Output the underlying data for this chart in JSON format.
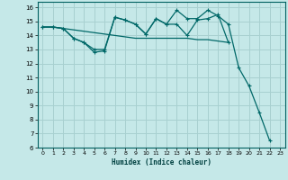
{
  "xlabel": "Humidex (Indice chaleur)",
  "bg_color": "#c5e8e8",
  "grid_color": "#a8d0d0",
  "line_color": "#006868",
  "xlim": [
    -0.5,
    23.5
  ],
  "ylim": [
    6,
    16.4
  ],
  "yticks": [
    6,
    7,
    8,
    9,
    10,
    11,
    12,
    13,
    14,
    15,
    16
  ],
  "xticks": [
    0,
    1,
    2,
    3,
    4,
    5,
    6,
    7,
    8,
    9,
    10,
    11,
    12,
    13,
    14,
    15,
    16,
    17,
    18,
    19,
    20,
    21,
    22,
    23
  ],
  "series1_x": [
    0,
    1,
    2,
    3,
    4,
    5,
    6,
    7,
    8,
    9,
    10,
    11,
    12,
    13,
    14,
    15,
    16,
    17,
    18
  ],
  "series1_y": [
    14.6,
    14.6,
    14.5,
    14.4,
    14.3,
    14.2,
    14.1,
    14.0,
    13.9,
    13.8,
    13.8,
    13.8,
    13.8,
    13.8,
    13.8,
    13.7,
    13.7,
    13.6,
    13.5
  ],
  "series2_x": [
    0,
    1,
    2,
    3,
    4,
    5,
    6,
    7,
    8,
    9,
    10,
    11,
    12,
    13,
    14,
    15,
    16,
    17,
    18,
    19,
    20,
    21,
    22
  ],
  "series2_y": [
    14.6,
    14.6,
    14.5,
    13.8,
    13.5,
    12.8,
    12.9,
    15.3,
    15.1,
    14.8,
    14.1,
    15.2,
    14.8,
    15.8,
    15.2,
    15.2,
    15.8,
    15.4,
    14.8,
    11.7,
    10.4,
    8.5,
    6.5
  ],
  "series3_x": [
    0,
    1,
    2,
    3,
    4,
    5,
    6,
    7,
    8,
    9,
    10,
    11,
    12,
    13,
    14,
    15,
    16,
    17,
    18,
    19,
    20,
    21,
    22
  ],
  "series3_y": [
    14.6,
    14.6,
    14.5,
    13.8,
    13.5,
    13.0,
    13.0,
    15.3,
    15.1,
    14.8,
    14.1,
    15.2,
    14.8,
    14.8,
    14.0,
    15.1,
    15.2,
    15.5,
    13.5,
    null,
    null,
    null,
    null
  ]
}
